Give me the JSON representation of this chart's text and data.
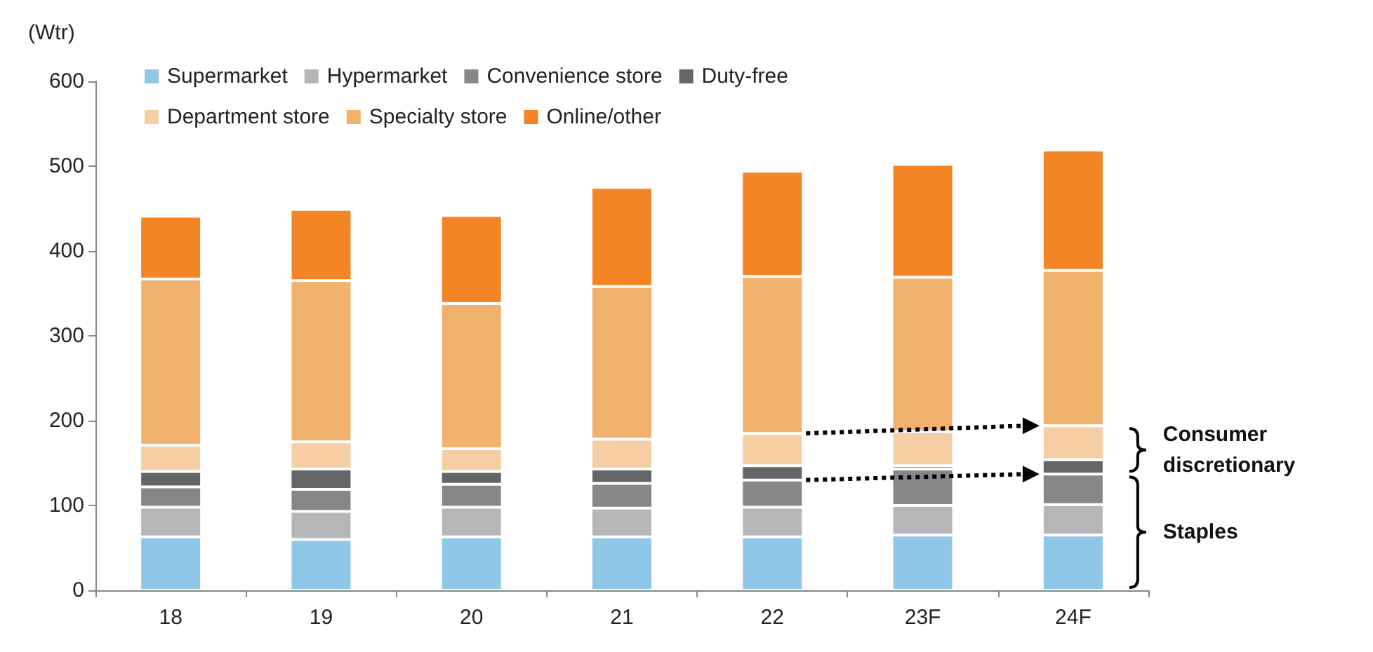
{
  "chart_data": {
    "type": "bar",
    "stacked": true,
    "ylabel": "(Wtr)",
    "categories": [
      "18",
      "19",
      "20",
      "21",
      "22",
      "23F",
      "24F"
    ],
    "series": [
      {
        "name": "Supermarket",
        "color": "#8fc7e8",
        "values": [
          63,
          60,
          63,
          63,
          63,
          65,
          65
        ]
      },
      {
        "name": "Hypermarket",
        "color": "#b5b6b8",
        "values": [
          35,
          33,
          35,
          34,
          35,
          35,
          36
        ]
      },
      {
        "name": "Convenience store",
        "color": "#858789",
        "values": [
          24,
          26,
          27,
          29,
          32,
          43,
          36
        ]
      },
      {
        "name": "Duty-free",
        "color": "#636567",
        "values": [
          18,
          24,
          15,
          17,
          17,
          4,
          17
        ]
      },
      {
        "name": "Department store",
        "color": "#f5cfa3",
        "values": [
          31,
          32,
          27,
          35,
          38,
          40,
          40
        ]
      },
      {
        "name": "Specialty store",
        "color": "#f0b26c",
        "values": [
          196,
          190,
          171,
          180,
          185,
          182,
          183
        ]
      },
      {
        "name": "Online/other",
        "color": "#f48525",
        "values": [
          74,
          84,
          104,
          117,
          124,
          133,
          142
        ]
      }
    ],
    "ylim": [
      0,
      600
    ],
    "yticks": [
      0,
      100,
      200,
      300,
      400,
      500,
      600
    ],
    "grid": false,
    "legend": "top left",
    "annotations": [
      "Consumer discretionary",
      "Staples"
    ]
  }
}
